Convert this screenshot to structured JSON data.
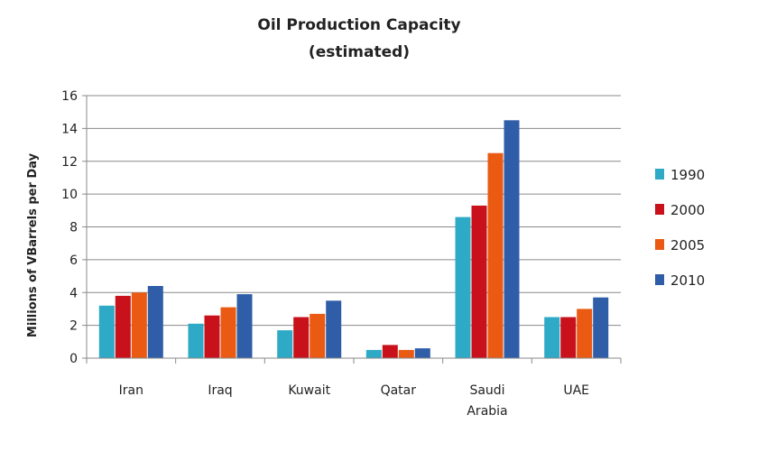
{
  "chart_data": {
    "type": "bar",
    "title": "Oil Production Capacity",
    "subtitle": "(estimated)",
    "ylabel": "Millions of VBarrels per Day",
    "xlabel": "",
    "ylim": [
      0,
      16
    ],
    "yticks": [
      "0",
      "2",
      "4",
      "6",
      "8",
      "10",
      "12",
      "14",
      "16"
    ],
    "categories": [
      [
        "Iran"
      ],
      [
        "Iraq"
      ],
      [
        "Kuwait"
      ],
      [
        "Qatar"
      ],
      [
        "Saudi",
        "Arabia"
      ],
      [
        "UAE"
      ]
    ],
    "series": [
      {
        "name": "1990",
        "color": "#2ea9c6",
        "values": [
          3.2,
          2.1,
          1.7,
          0.5,
          8.6,
          2.5
        ]
      },
      {
        "name": "2000",
        "color": "#c8111b",
        "values": [
          3.8,
          2.6,
          2.5,
          0.8,
          9.3,
          2.5
        ]
      },
      {
        "name": "2005",
        "color": "#ea5a12",
        "values": [
          4.0,
          3.1,
          2.7,
          0.5,
          12.5,
          3.0
        ]
      },
      {
        "name": "2010",
        "color": "#2f5da8",
        "values": [
          4.4,
          3.9,
          3.5,
          0.6,
          14.5,
          3.7
        ]
      }
    ],
    "grid": true,
    "legend_position": "right"
  }
}
